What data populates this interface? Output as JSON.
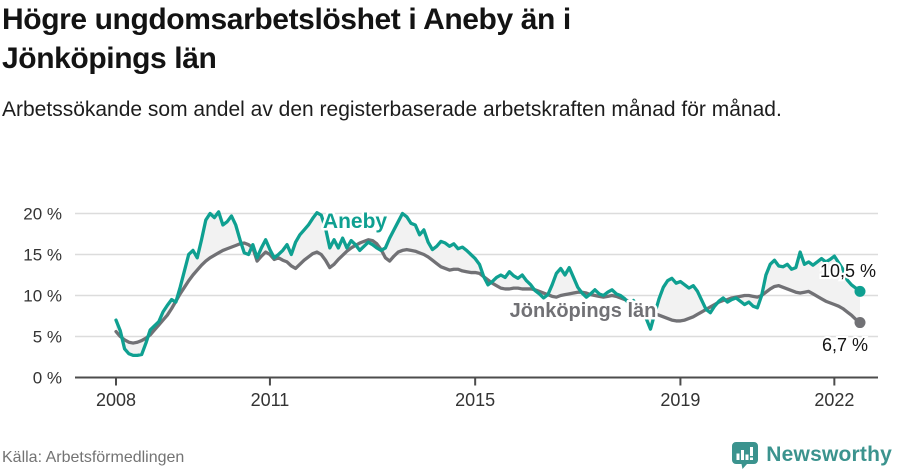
{
  "header": {
    "title": "Högre ungdomsarbetslöshet i Aneby än i Jönköpings län",
    "subtitle": "Arbetssökande som andel av den registerbaserade arbetskraften månad för månad."
  },
  "chart_data": {
    "type": "line",
    "title": "Högre ungdomsarbetslöshet i Aneby än i Jönköpings län",
    "unit": "%",
    "frequency": "monthly",
    "x_start": "2008-01",
    "x_end": "2022-07",
    "ylim": [
      0,
      21
    ],
    "grid": "horizontal",
    "band_fill": "#f2f2f2",
    "legend_position": "inline-labels",
    "y_axis": {
      "ticks": [
        {
          "value": 0,
          "label": "0 %"
        },
        {
          "value": 5,
          "label": "5 %"
        },
        {
          "value": 10,
          "label": "10 %"
        },
        {
          "value": 15,
          "label": "15 %"
        },
        {
          "value": 20,
          "label": "20 %"
        }
      ]
    },
    "x_axis": {
      "ticks": [
        {
          "year": 2008,
          "label": "2008"
        },
        {
          "year": 2011,
          "label": "2011"
        },
        {
          "year": 2015,
          "label": "2015"
        },
        {
          "year": 2019,
          "label": "2019"
        },
        {
          "year": 2022,
          "label": "2022"
        }
      ]
    },
    "series": [
      {
        "name": "Aneby",
        "color": "#0fa091",
        "end_label": "10,5 %",
        "end_value": 10.5,
        "values": [
          7.0,
          5.7,
          3.5,
          2.9,
          2.7,
          2.7,
          2.8,
          4.2,
          5.8,
          6.3,
          6.8,
          8.0,
          8.8,
          9.5,
          9.2,
          11.0,
          13.0,
          15.0,
          15.5,
          14.6,
          16.8,
          19.2,
          20.0,
          19.5,
          20.2,
          18.6,
          19.0,
          19.7,
          18.6,
          16.8,
          15.2,
          15.0,
          16.2,
          14.6,
          15.8,
          16.8,
          15.6,
          14.6,
          15.0,
          15.5,
          16.2,
          15.0,
          16.5,
          17.4,
          18.0,
          18.6,
          19.4,
          20.1,
          19.8,
          18.2,
          15.8,
          16.8,
          15.8,
          17.0,
          15.8,
          16.7,
          16.2,
          15.5,
          16.0,
          16.5,
          16.2,
          15.8,
          15.5,
          15.8,
          17.0,
          18.0,
          19.0,
          20.0,
          19.6,
          18.8,
          18.6,
          17.4,
          18.0,
          16.5,
          15.6,
          16.0,
          16.6,
          16.4,
          16.0,
          16.3,
          15.7,
          15.9,
          15.5,
          15.0,
          14.5,
          13.8,
          12.3,
          11.3,
          11.7,
          12.2,
          12.5,
          12.2,
          12.9,
          12.4,
          12.1,
          12.5,
          11.8,
          11.3,
          10.6,
          10.2,
          9.7,
          10.1,
          11.3,
          12.7,
          13.3,
          12.5,
          13.4,
          12.2,
          11.0,
          10.3,
          9.8,
          10.2,
          10.7,
          10.2,
          10.0,
          10.4,
          10.7,
          10.2,
          10.0,
          9.6,
          9.0,
          9.4,
          8.8,
          8.3,
          7.2,
          5.9,
          7.8,
          9.6,
          11.0,
          11.8,
          12.1,
          11.5,
          11.7,
          11.3,
          10.9,
          11.2,
          10.5,
          9.4,
          8.3,
          7.9,
          8.7,
          9.3,
          9.7,
          9.2,
          9.5,
          9.7,
          9.3,
          8.9,
          9.2,
          8.7,
          8.5,
          10.0,
          12.5,
          13.8,
          14.3,
          13.6,
          13.5,
          13.8,
          13.2,
          13.4,
          15.3,
          13.8,
          14.1,
          13.7,
          14.1,
          14.5,
          14.1,
          14.4,
          14.8,
          14.0,
          13.2,
          11.9,
          11.3,
          10.9,
          10.5
        ]
      },
      {
        "name": "Jönköpings län",
        "color": "#717175",
        "end_label": "6,7 %",
        "end_value": 6.7,
        "values": [
          5.6,
          5.0,
          4.6,
          4.3,
          4.2,
          4.3,
          4.5,
          4.8,
          5.2,
          5.8,
          6.4,
          7.0,
          7.6,
          8.4,
          9.3,
          10.2,
          11.0,
          11.8,
          12.5,
          13.1,
          13.7,
          14.2,
          14.6,
          14.9,
          15.2,
          15.5,
          15.7,
          15.9,
          16.1,
          16.3,
          16.4,
          16.2,
          15.8,
          14.2,
          14.8,
          15.3,
          15.0,
          14.4,
          14.6,
          14.3,
          14.1,
          13.6,
          13.3,
          13.8,
          14.3,
          14.7,
          15.1,
          15.3,
          15.0,
          14.3,
          13.4,
          13.8,
          14.4,
          14.9,
          15.4,
          15.8,
          16.1,
          16.4,
          16.6,
          16.8,
          16.7,
          16.3,
          15.6,
          14.6,
          14.2,
          14.8,
          15.3,
          15.5,
          15.6,
          15.5,
          15.4,
          15.2,
          15.0,
          14.7,
          14.3,
          13.9,
          13.5,
          13.3,
          13.1,
          13.2,
          13.2,
          13.0,
          12.9,
          12.8,
          12.8,
          12.7,
          12.3,
          11.9,
          11.5,
          11.2,
          10.9,
          10.8,
          10.8,
          10.9,
          10.9,
          10.8,
          10.8,
          10.8,
          10.7,
          10.5,
          10.3,
          10.1,
          9.9,
          9.8,
          10.0,
          10.1,
          10.2,
          10.3,
          10.4,
          10.4,
          10.3,
          10.1,
          10.0,
          9.9,
          9.8,
          9.9,
          10.0,
          9.9,
          9.7,
          9.5,
          9.3,
          9.1,
          8.9,
          8.6,
          8.3,
          8.0,
          7.8,
          7.6,
          7.4,
          7.2,
          7.0,
          6.9,
          6.9,
          7.0,
          7.2,
          7.4,
          7.7,
          8.0,
          8.3,
          8.6,
          8.9,
          9.2,
          9.4,
          9.5,
          9.7,
          9.8,
          9.9,
          10.0,
          10.0,
          9.9,
          9.8,
          10.0,
          10.4,
          10.8,
          11.1,
          11.2,
          11.0,
          10.8,
          10.6,
          10.4,
          10.3,
          10.4,
          10.5,
          10.2,
          9.9,
          9.6,
          9.3,
          9.1,
          8.9,
          8.7,
          8.4,
          8.0,
          7.6,
          7.1,
          6.7
        ]
      }
    ]
  },
  "footer": {
    "source": "Källa: Arbetsförmedlingen",
    "brand": "Newsworthy"
  },
  "colors": {
    "aneby_line": "#0fa091",
    "county_line": "#717175",
    "band_fill": "#f2f2f2",
    "gridline": "#dcdcdc",
    "axis": "#4c4c4c",
    "tick_label": "#333333",
    "end_label": "#141414",
    "brand_teal": "#3b938e"
  }
}
